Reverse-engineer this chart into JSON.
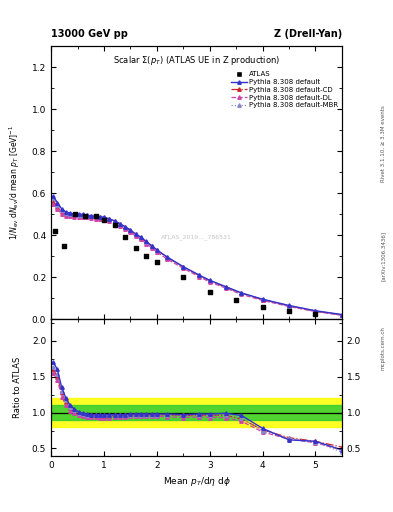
{
  "title_left": "13000 GeV pp",
  "title_right": "Z (Drell-Yan)",
  "plot_title": "Scalar Σ(p_{T}) (ATLAS UE in Z production)",
  "xlabel": "Mean p_{T}/dη dφ",
  "ylabel_main": "1/N_{ev} dN_{ev}/d mean p_T [GeV]^{-1}",
  "ylabel_ratio": "Ratio to ATLAS",
  "right_label1": "Rivet 3.1.10, ≥ 3.3M events",
  "right_label2": "[arXiv:1306.3436]",
  "right_label3": "mcplots.cern.ch",
  "watermark": "ATLAS_2019..._786531",
  "atlas_x": [
    0.08,
    0.25,
    0.45,
    0.65,
    0.85,
    1.0,
    1.2,
    1.4,
    1.6,
    1.8,
    2.0,
    2.5,
    3.0,
    3.5,
    4.0,
    4.5,
    5.0
  ],
  "atlas_y": [
    0.42,
    0.35,
    0.5,
    0.49,
    0.49,
    0.47,
    0.45,
    0.39,
    0.34,
    0.3,
    0.27,
    0.2,
    0.13,
    0.09,
    0.06,
    0.04,
    0.025
  ],
  "py_x": [
    0.04,
    0.12,
    0.2,
    0.28,
    0.36,
    0.44,
    0.52,
    0.6,
    0.68,
    0.76,
    0.84,
    0.92,
    1.0,
    1.1,
    1.2,
    1.3,
    1.4,
    1.5,
    1.6,
    1.7,
    1.8,
    1.9,
    2.0,
    2.2,
    2.5,
    2.8,
    3.0,
    3.3,
    3.6,
    4.0,
    4.5,
    5.0,
    5.5
  ],
  "py_default_y": [
    0.585,
    0.555,
    0.525,
    0.51,
    0.505,
    0.5,
    0.5,
    0.499,
    0.495,
    0.492,
    0.49,
    0.488,
    0.485,
    0.478,
    0.468,
    0.455,
    0.44,
    0.425,
    0.405,
    0.39,
    0.37,
    0.35,
    0.33,
    0.295,
    0.25,
    0.21,
    0.185,
    0.155,
    0.125,
    0.095,
    0.065,
    0.04,
    0.022
  ],
  "py_cd_y": [
    0.56,
    0.535,
    0.51,
    0.5,
    0.498,
    0.496,
    0.495,
    0.494,
    0.492,
    0.489,
    0.487,
    0.485,
    0.482,
    0.475,
    0.465,
    0.452,
    0.437,
    0.422,
    0.403,
    0.388,
    0.368,
    0.348,
    0.328,
    0.293,
    0.248,
    0.208,
    0.183,
    0.153,
    0.123,
    0.093,
    0.063,
    0.038,
    0.02
  ],
  "py_dl_y": [
    0.55,
    0.525,
    0.5,
    0.492,
    0.49,
    0.488,
    0.487,
    0.486,
    0.484,
    0.481,
    0.479,
    0.477,
    0.474,
    0.467,
    0.457,
    0.444,
    0.429,
    0.414,
    0.395,
    0.38,
    0.36,
    0.34,
    0.32,
    0.285,
    0.242,
    0.202,
    0.177,
    0.148,
    0.118,
    0.089,
    0.06,
    0.036,
    0.018
  ],
  "py_mbr_y": [
    0.575,
    0.545,
    0.518,
    0.505,
    0.502,
    0.499,
    0.498,
    0.497,
    0.494,
    0.491,
    0.489,
    0.487,
    0.484,
    0.477,
    0.467,
    0.454,
    0.439,
    0.424,
    0.404,
    0.389,
    0.369,
    0.349,
    0.329,
    0.294,
    0.249,
    0.209,
    0.184,
    0.154,
    0.124,
    0.094,
    0.064,
    0.039,
    0.021
  ],
  "ratio_default_y": [
    1.7,
    1.6,
    1.35,
    1.2,
    1.1,
    1.05,
    1.01,
    0.99,
    0.98,
    0.97,
    0.97,
    0.97,
    0.97,
    0.97,
    0.97,
    0.97,
    0.97,
    0.98,
    0.98,
    0.98,
    0.98,
    0.98,
    0.98,
    0.98,
    0.97,
    0.98,
    0.98,
    0.99,
    0.96,
    0.78,
    0.62,
    0.6,
    0.48
  ],
  "ratio_cd_y": [
    1.6,
    1.5,
    1.28,
    1.15,
    1.06,
    1.02,
    0.99,
    0.97,
    0.96,
    0.96,
    0.96,
    0.95,
    0.95,
    0.95,
    0.96,
    0.96,
    0.96,
    0.97,
    0.97,
    0.97,
    0.97,
    0.97,
    0.97,
    0.97,
    0.96,
    0.96,
    0.96,
    0.96,
    0.91,
    0.76,
    0.65,
    0.6,
    0.52
  ],
  "ratio_dl_y": [
    1.55,
    1.45,
    1.22,
    1.1,
    1.02,
    0.99,
    0.96,
    0.95,
    0.94,
    0.94,
    0.94,
    0.93,
    0.93,
    0.93,
    0.94,
    0.94,
    0.94,
    0.95,
    0.95,
    0.95,
    0.95,
    0.95,
    0.95,
    0.94,
    0.93,
    0.94,
    0.93,
    0.93,
    0.88,
    0.73,
    0.63,
    0.58,
    0.48
  ],
  "ratio_mbr_y": [
    1.63,
    1.53,
    1.3,
    1.17,
    1.08,
    1.03,
    1.0,
    0.98,
    0.97,
    0.96,
    0.96,
    0.96,
    0.96,
    0.96,
    0.96,
    0.96,
    0.96,
    0.97,
    0.97,
    0.97,
    0.97,
    0.97,
    0.97,
    0.97,
    0.96,
    0.97,
    0.96,
    0.97,
    0.92,
    0.75,
    0.64,
    0.59,
    0.45
  ],
  "band_green_lo": 0.9,
  "band_green_hi": 1.1,
  "band_yellow_lo": 0.8,
  "band_yellow_hi": 1.2,
  "color_default": "#3333cc",
  "color_cd": "#cc2222",
  "color_dl": "#cc44aa",
  "color_mbr": "#8888cc",
  "color_atlas": "#000000",
  "main_ylim": [
    0.0,
    1.3
  ],
  "ratio_ylim": [
    0.4,
    2.3
  ],
  "xlim": [
    0.0,
    5.5
  ],
  "ratio_yticks": [
    0.5,
    1.0,
    1.5,
    2.0
  ],
  "legend_entries": [
    "ATLAS",
    "Pythia 8.308 default",
    "Pythia 8.308 default-CD",
    "Pythia 8.308 default-DL",
    "Pythia 8.308 default-MBR"
  ]
}
